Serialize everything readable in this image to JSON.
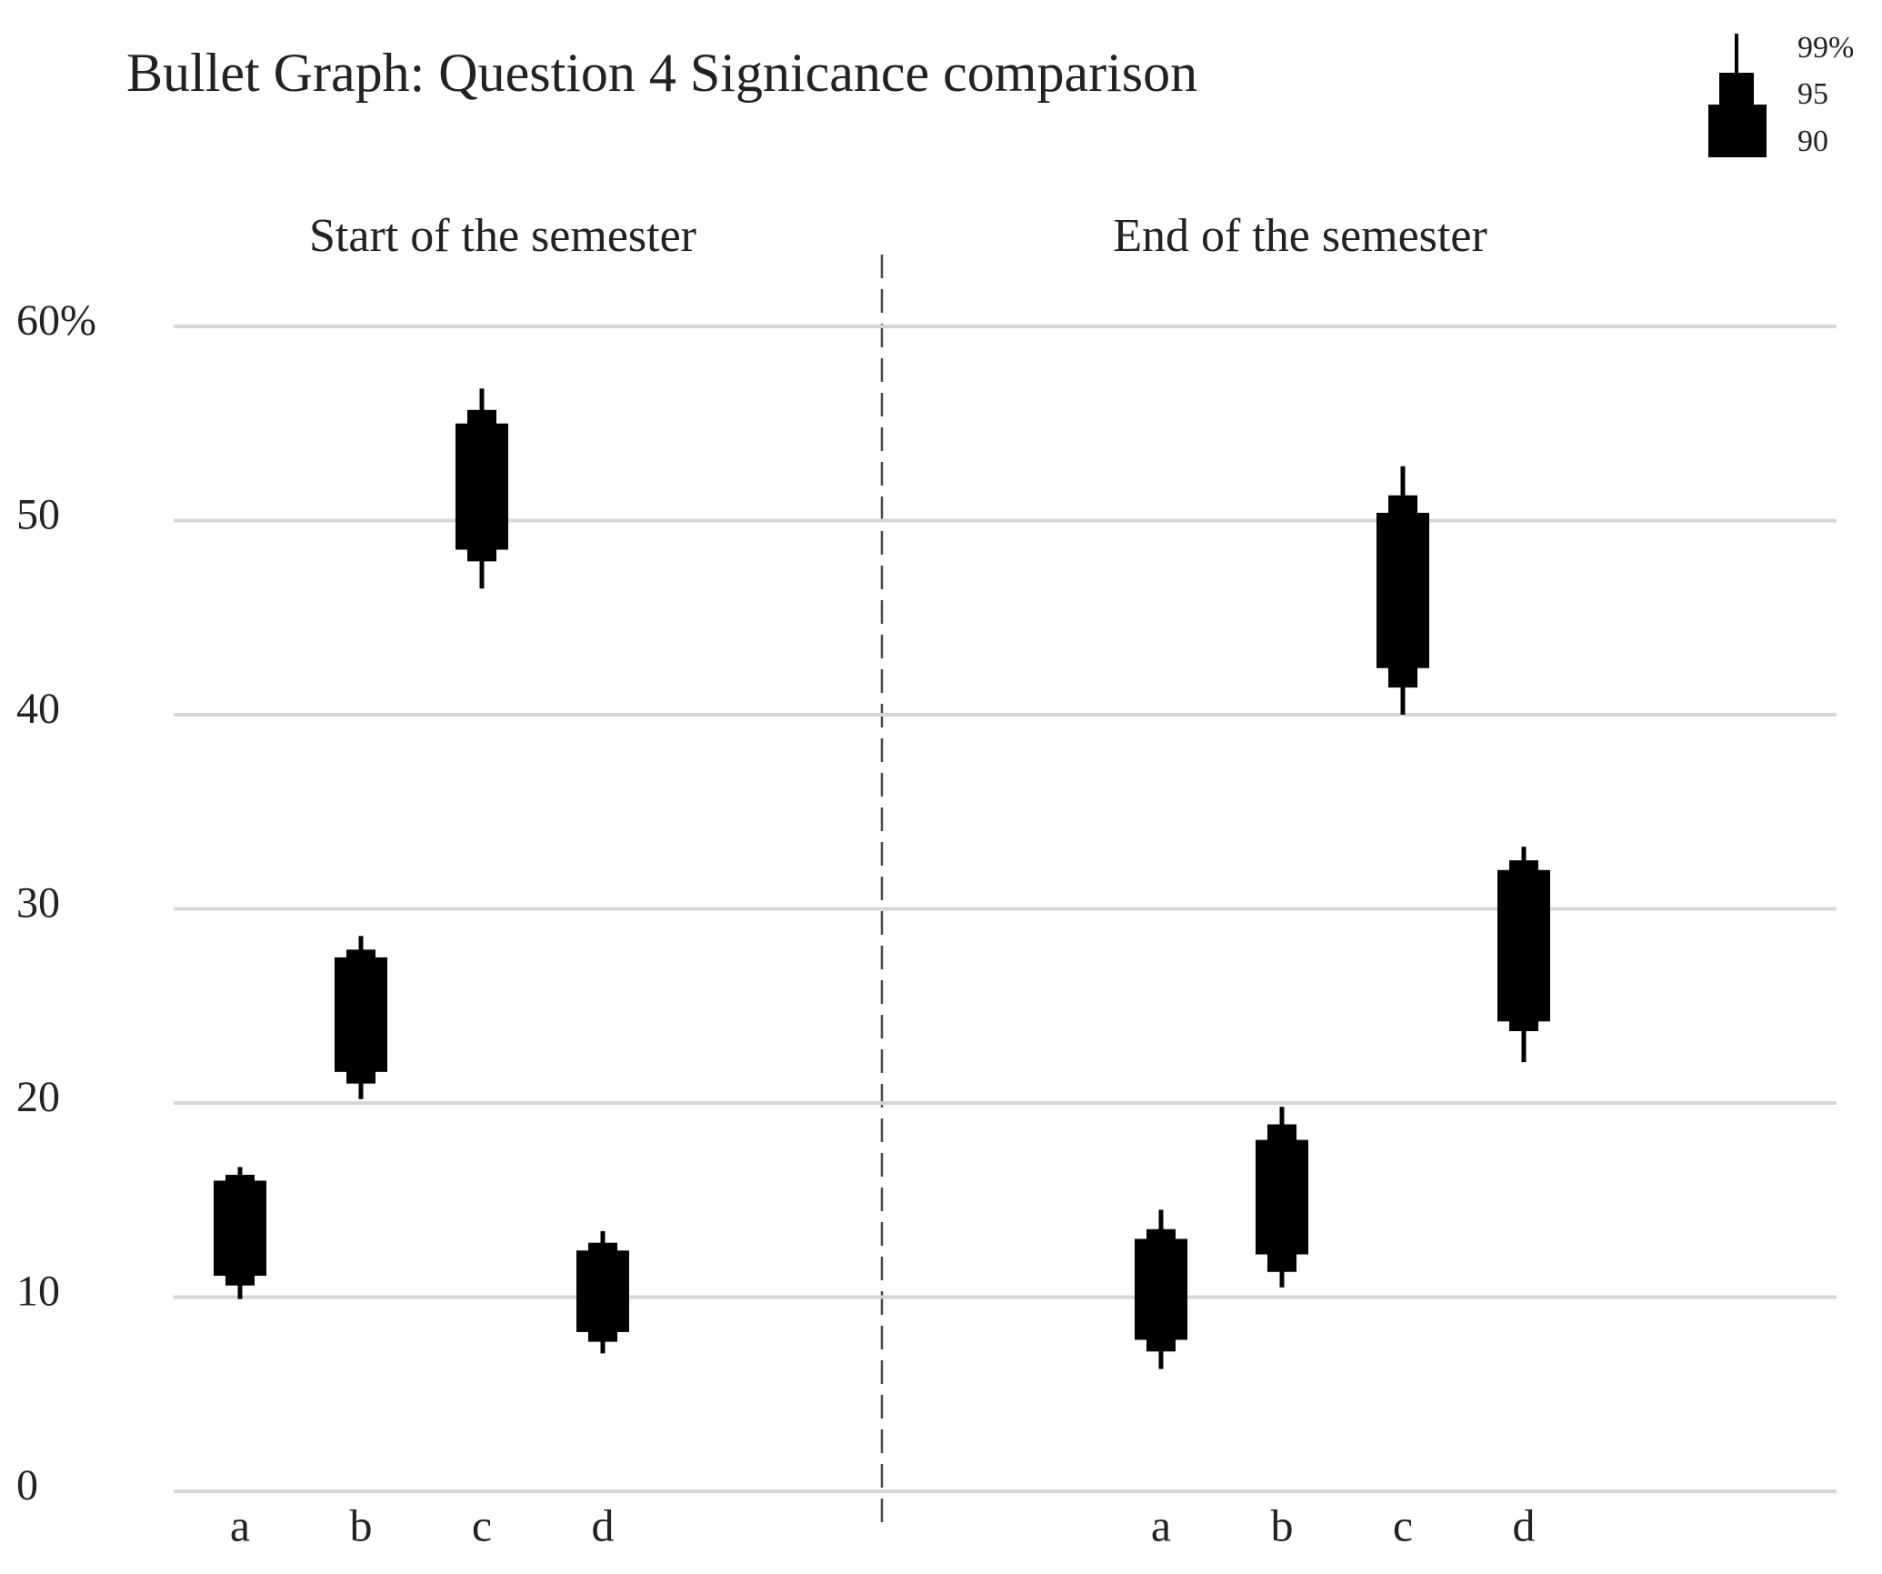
{
  "chart_data": {
    "type": "bullet",
    "title": "Bullet Graph: Question 4  Signicance comparison",
    "ylim": [
      0,
      60
    ],
    "yticks": [
      0,
      10,
      20,
      30,
      40,
      50,
      {
        "value": 60,
        "label": "60%"
      }
    ],
    "grid": true,
    "legend": "top-right",
    "panels": [
      {
        "title": "Start of the semester",
        "categories": [
          "a",
          "b",
          "c",
          "d"
        ]
      },
      {
        "title": "End of the semester",
        "categories": [
          "a",
          "b",
          "c",
          "d"
        ]
      }
    ],
    "series": [
      {
        "name": "99%",
        "color": "#000000",
        "low": [
          [
            9.9,
            20.2,
            46.5,
            7.1
          ],
          [
            6.3,
            10.5,
            40.0,
            22.1
          ]
        ],
        "high": [
          [
            16.7,
            28.6,
            56.8,
            13.4
          ],
          [
            14.5,
            19.8,
            52.8,
            33.2
          ]
        ]
      },
      {
        "name": "95",
        "color": "#000000",
        "low": [
          [
            10.6,
            21.0,
            47.9,
            7.7
          ],
          [
            7.2,
            11.3,
            41.4,
            23.7
          ]
        ],
        "high": [
          [
            16.3,
            27.9,
            55.7,
            12.8
          ],
          [
            13.5,
            18.9,
            51.3,
            32.5
          ]
        ]
      },
      {
        "name": "90",
        "color": "#000000",
        "low": [
          [
            11.1,
            21.6,
            48.5,
            8.2
          ],
          [
            7.8,
            12.2,
            42.4,
            24.2
          ]
        ],
        "high": [
          [
            16.0,
            27.5,
            55.0,
            12.4
          ],
          [
            13.0,
            18.1,
            50.4,
            32.0
          ]
        ]
      }
    ]
  }
}
